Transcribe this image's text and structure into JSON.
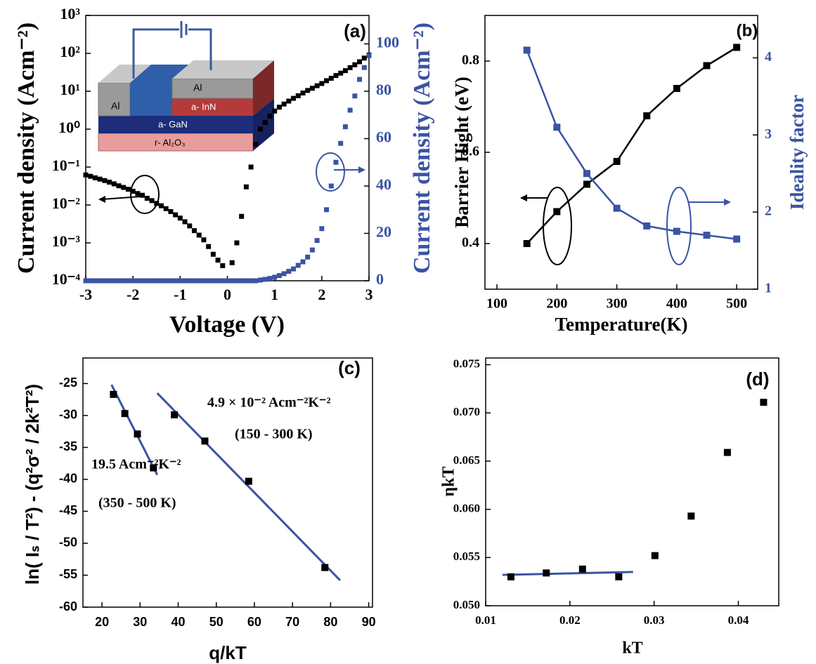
{
  "chart_data": [
    {
      "type": "scatter",
      "panel_label": "(a)",
      "x_label": "Voltage (V)",
      "y_label": "Current density (Acm⁻²)",
      "y2_label": "Current density (Acm⁻²)",
      "ylog": true,
      "xlim": [
        -3,
        3
      ],
      "ylim": [
        0.0001,
        1000
      ],
      "y2lim": [
        0,
        112
      ],
      "xticks": [
        -3,
        -2,
        -1,
        0,
        1,
        2,
        3
      ],
      "yticks": [
        {
          "value": 1000,
          "label": "10³"
        },
        {
          "value": 100,
          "label": "10²"
        },
        {
          "value": 10,
          "label": "10¹"
        },
        {
          "value": 1,
          "label": "10⁰"
        },
        {
          "value": 0.1,
          "label": "10⁻¹"
        },
        {
          "value": 0.01,
          "label": "10⁻²"
        },
        {
          "value": 0.001,
          "label": "10⁻³"
        },
        {
          "value": 0.0001,
          "label": "10⁻⁴"
        }
      ],
      "y2ticks": [
        0,
        20,
        40,
        60,
        80,
        100
      ],
      "inset_labels": [
        "Al",
        "Al",
        "a- InN",
        "a- GaN",
        "r- Al₂O₃"
      ],
      "x": [
        -3.0,
        -2.9,
        -2.8,
        -2.7,
        -2.6,
        -2.5,
        -2.4,
        -2.3,
        -2.2,
        -2.1,
        -2.0,
        -1.9,
        -1.8,
        -1.7,
        -1.6,
        -1.5,
        -1.4,
        -1.3,
        -1.2,
        -1.1,
        -1.0,
        -0.9,
        -0.8,
        -0.7,
        -0.6,
        -0.5,
        -0.4,
        -0.3,
        -0.2,
        -0.1,
        0.0,
        0.1,
        0.2,
        0.3,
        0.4,
        0.5,
        0.6,
        0.7,
        0.8,
        0.9,
        1.0,
        1.1,
        1.2,
        1.3,
        1.4,
        1.5,
        1.6,
        1.7,
        1.8,
        1.9,
        2.0,
        2.1,
        2.2,
        2.3,
        2.4,
        2.5,
        2.6,
        2.7,
        2.8,
        2.9,
        3.0
      ],
      "series": [
        {
          "color": "#000000",
          "values": [
            0.062,
            0.057,
            0.052,
            0.048,
            0.044,
            0.04,
            0.036,
            0.032,
            0.029,
            0.026,
            0.023,
            0.02,
            0.018,
            0.015,
            0.013,
            0.011,
            0.0095,
            0.008,
            0.0067,
            0.0055,
            0.0045,
            0.0036,
            0.0028,
            0.0021,
            0.0016,
            0.0012,
            0.0008,
            0.0005,
            0.00035,
            0.00025,
            null,
            0.0003,
            0.001,
            0.005,
            0.03,
            0.1,
            0.4,
            1.0,
            1.5,
            2.2,
            3,
            3.8,
            4.6,
            5.5,
            6.5,
            7.6,
            9,
            10.5,
            12,
            14,
            16,
            19,
            22,
            26,
            30,
            35,
            42,
            50,
            60,
            75,
            90
          ]
        },
        {
          "color": "#3a53a4",
          "axis": "y2",
          "values": [
            0,
            0,
            0,
            0,
            0,
            0,
            0,
            0,
            0,
            0,
            0,
            0,
            0,
            0,
            0,
            0,
            0,
            0,
            0,
            0,
            0,
            0,
            0,
            0,
            0,
            0,
            0,
            0,
            0,
            0,
            0,
            0,
            0,
            0,
            0,
            0,
            0,
            0.3,
            0.6,
            1,
            1.5,
            2.2,
            3,
            4,
            5,
            6.5,
            8,
            10,
            13,
            17,
            22,
            30,
            40,
            50,
            58,
            65,
            72,
            78,
            85,
            90,
            95
          ]
        }
      ]
    },
    {
      "type": "line",
      "panel_label": "(b)",
      "x_label": "Temperature(K)",
      "y_label": "Barrier Hight (eV)",
      "y2_label": "Ideality factor",
      "xlim": [
        80,
        535
      ],
      "ylim": [
        0.3,
        0.9
      ],
      "y2lim": [
        1,
        4.55
      ],
      "xticks": [
        100,
        200,
        300,
        400,
        500
      ],
      "yticks": [
        0.4,
        0.6,
        0.8
      ],
      "y2ticks": [
        1,
        2,
        3,
        4
      ],
      "x": [
        150,
        200,
        250,
        300,
        350,
        400,
        450,
        500
      ],
      "series": [
        {
          "color": "#000000",
          "values": [
            0.4,
            0.47,
            0.53,
            0.58,
            0.68,
            0.74,
            0.79,
            0.83
          ]
        },
        {
          "color": "#3a53a4",
          "axis": "y2",
          "values": [
            4.1,
            3.1,
            2.5,
            2.05,
            1.82,
            1.75,
            1.7,
            1.65
          ]
        }
      ]
    },
    {
      "type": "scatter",
      "panel_label": "(c)",
      "x_label": "q/kT",
      "y_label": "ln( Iₛ / T²) - (q²σ² / 2k²T²)",
      "xlim": [
        15,
        91
      ],
      "ylim": [
        -60,
        -21
      ],
      "xticks": [
        20,
        30,
        40,
        50,
        60,
        70,
        80,
        90
      ],
      "yticks": [
        -60,
        -55,
        -50,
        -45,
        -40,
        -35,
        -30,
        -25
      ],
      "annotations": [
        "4.9 × 10⁻² Acm⁻²K⁻²",
        "(150 - 300 K)",
        "19.5 Acm⁻²K⁻²",
        "(350 - 500 K)"
      ],
      "series": [
        {
          "color": "#000000",
          "x": [
            23,
            26,
            29.3,
            33.5,
            39,
            47,
            58.5,
            78.5
          ],
          "values": [
            -26.7,
            -29.7,
            -32.9,
            -38.2,
            -29.9,
            -34,
            -40.3,
            -53.8
          ]
        }
      ],
      "fits": [
        {
          "color": "#3a53a4",
          "x": [
            22.5,
            34.5
          ],
          "values": [
            -25.2,
            -39.3
          ]
        },
        {
          "color": "#3a53a4",
          "x": [
            34.5,
            82.5
          ],
          "values": [
            -26.5,
            -55.8
          ]
        }
      ]
    },
    {
      "type": "scatter",
      "panel_label": "(d)",
      "x_label": "kT",
      "y_label": "ηkT",
      "xlim": [
        0.01,
        0.0448
      ],
      "ylim": [
        0.05,
        0.0757
      ],
      "xticks": [
        0.01,
        0.02,
        0.03,
        0.04
      ],
      "yticks": [
        {
          "value": 0.05,
          "label": "0.050"
        },
        0.055,
        {
          "value": 0.06,
          "label": "0.060"
        },
        0.065,
        {
          "value": 0.07,
          "label": "0.070"
        },
        0.075
      ],
      "series": [
        {
          "color": "#000000",
          "x": [
            0.013,
            0.0172,
            0.0215,
            0.0258,
            0.0301,
            0.0344,
            0.0387,
            0.043
          ],
          "values": [
            0.053,
            0.0534,
            0.0538,
            0.053,
            0.0552,
            0.0593,
            0.0659,
            0.0711
          ]
        }
      ],
      "fits": [
        {
          "color": "#3a53a4",
          "x": [
            0.012,
            0.0275
          ],
          "values": [
            0.0532,
            0.0535
          ]
        }
      ]
    }
  ]
}
